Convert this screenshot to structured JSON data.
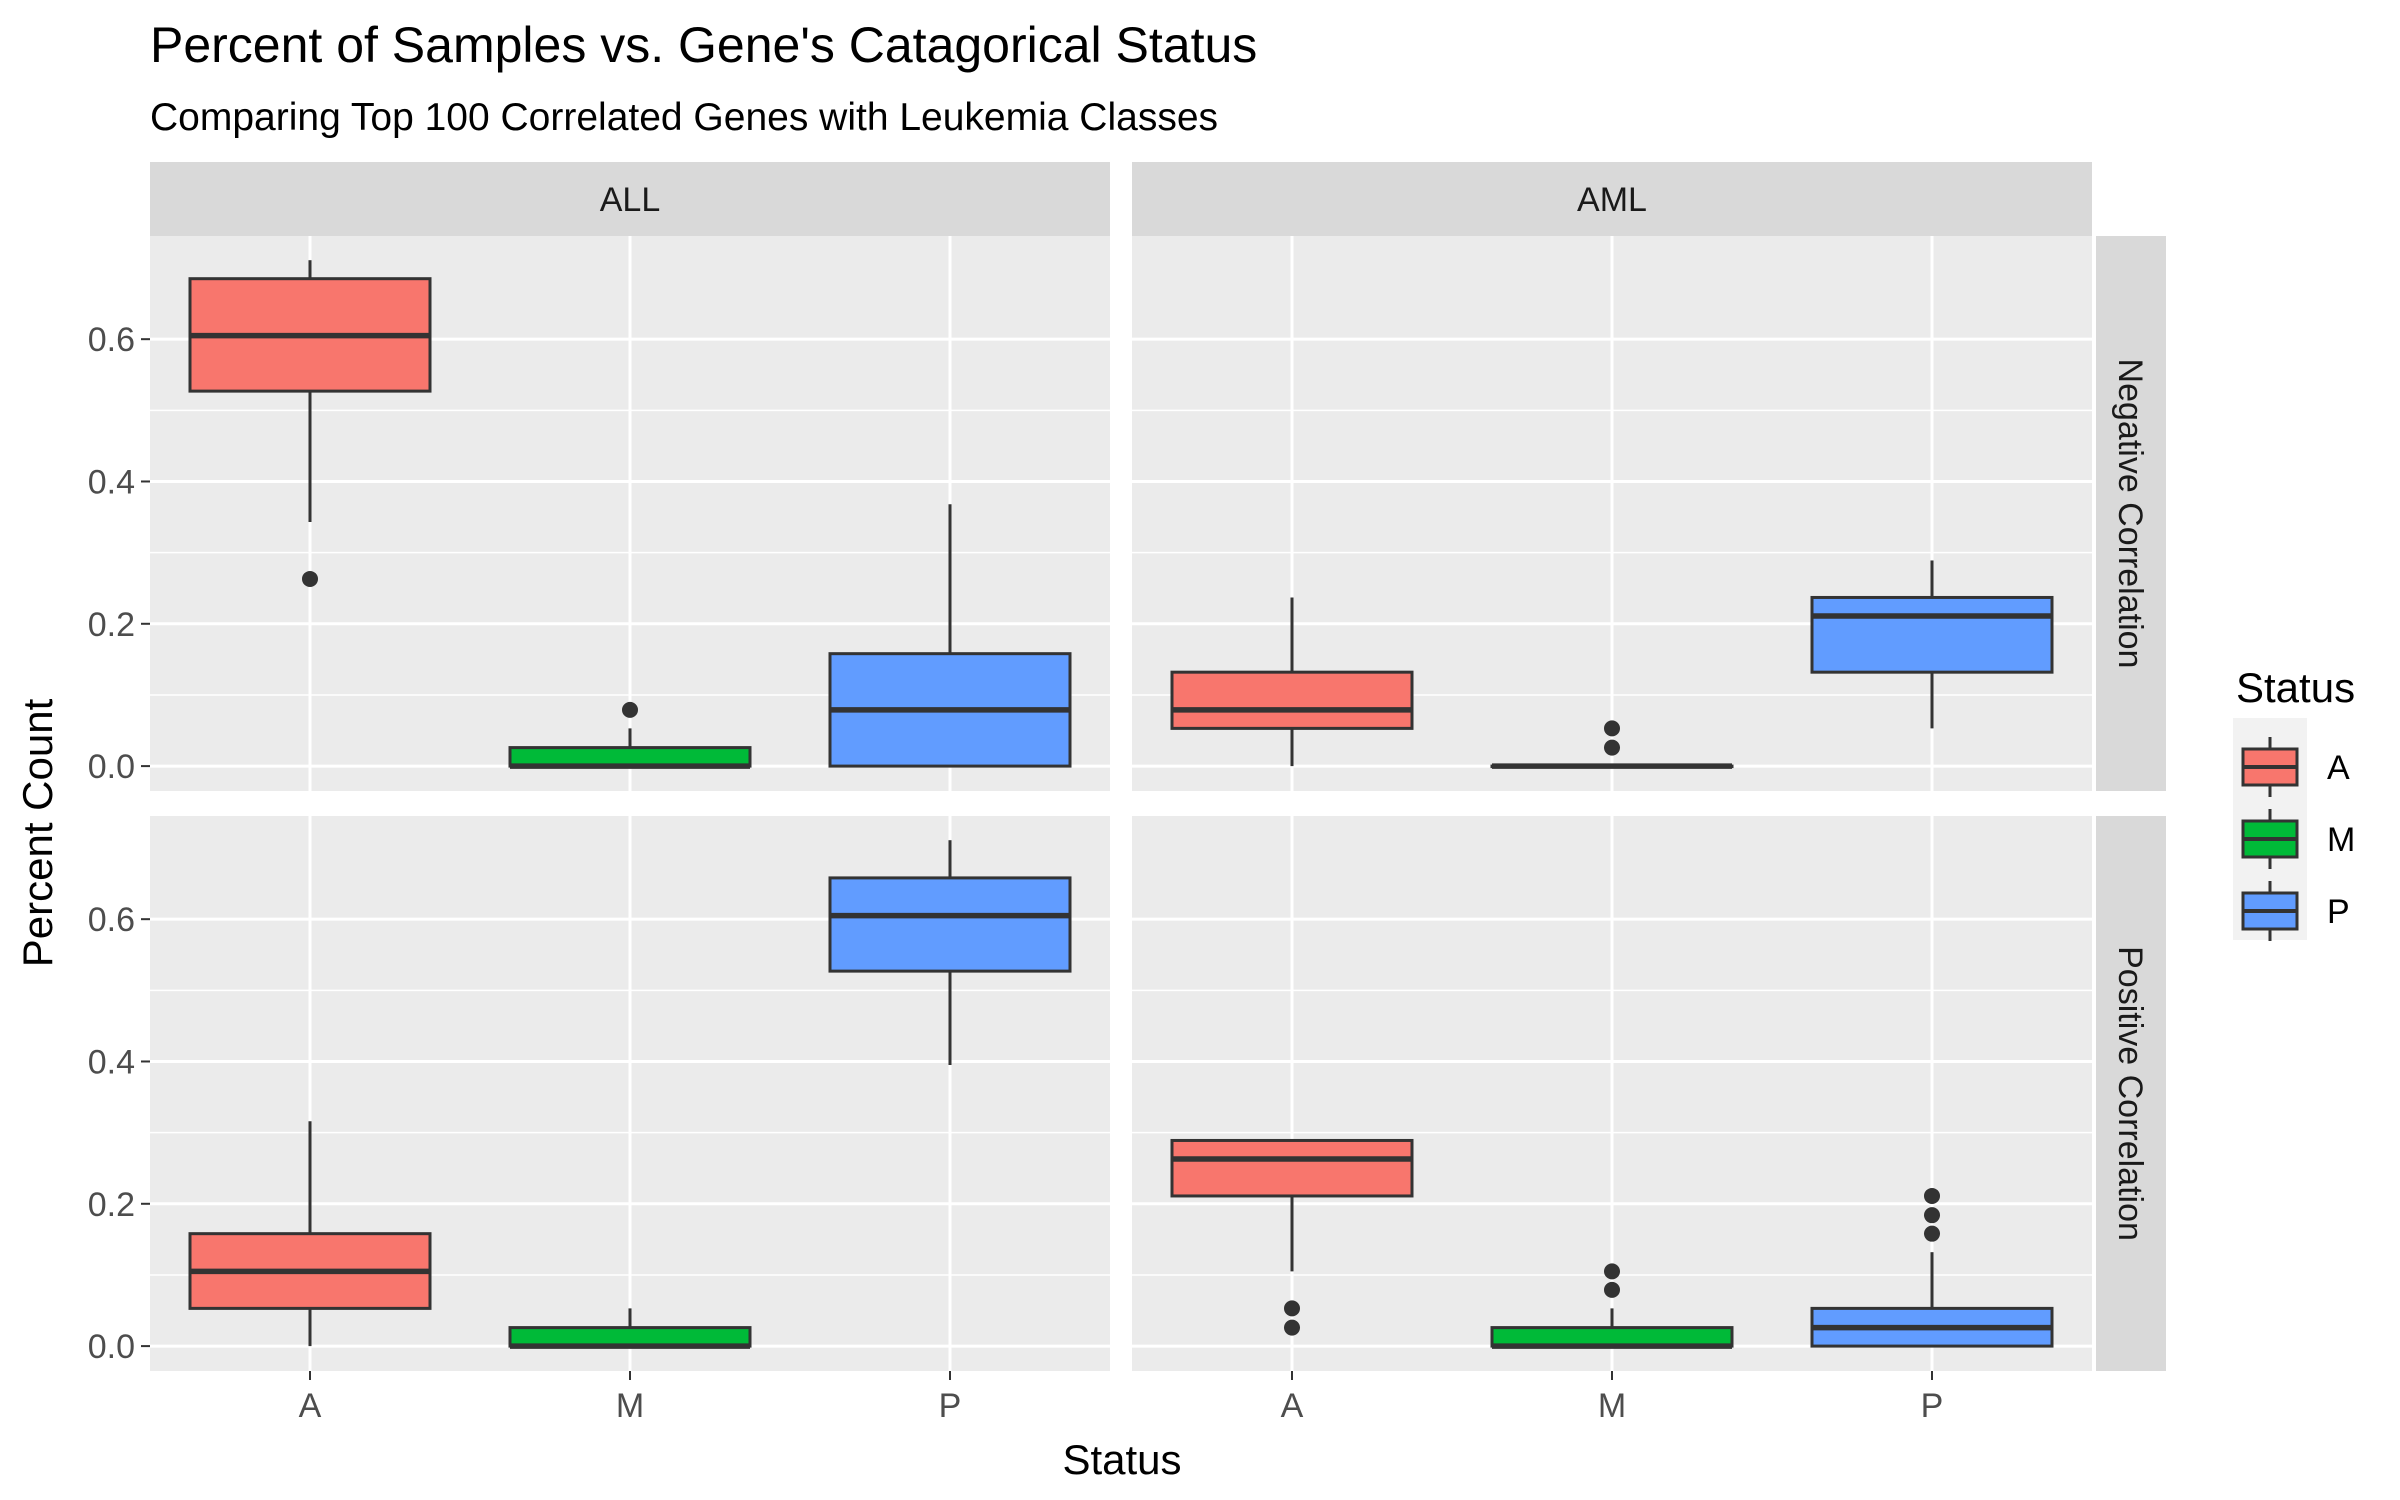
{
  "chart_data": {
    "type": "boxplot",
    "title": "Percent of Samples vs. Gene's Catagorical Status",
    "subtitle": "Comparing Top 100 Correlated Genes with Leukemia Classes",
    "xlabel": "Status",
    "ylabel": "Percent Count",
    "categories": [
      "A",
      "M",
      "P"
    ],
    "column_facets": [
      "ALL",
      "AML"
    ],
    "row_facets": [
      "Negative Correlation",
      "Positive Correlation"
    ],
    "yticks": [
      0.0,
      0.2,
      0.4,
      0.6
    ],
    "ytick_labels": [
      "0.0",
      "0.2",
      "0.4",
      "0.6"
    ],
    "ylim": [
      -0.035,
      0.745
    ],
    "grid": true,
    "legend": {
      "title": "Status",
      "position": "right",
      "entries": [
        {
          "label": "A",
          "color": "#F8766D"
        },
        {
          "label": "M",
          "color": "#00BA38"
        },
        {
          "label": "P",
          "color": "#619CFF"
        }
      ]
    },
    "panels": [
      {
        "row": 0,
        "col": 0,
        "boxes": [
          {
            "category": "A",
            "lower": 0.343,
            "q1": 0.527,
            "median": 0.605,
            "q3": 0.685,
            "upper": 0.711,
            "outliers": [
              0.263
            ]
          },
          {
            "category": "M",
            "lower": 0.0,
            "q1": 0.0,
            "median": 0.0,
            "q3": 0.026,
            "upper": 0.053,
            "outliers": [
              0.079
            ]
          },
          {
            "category": "P",
            "lower": 0.0,
            "q1": 0.0,
            "median": 0.079,
            "q3": 0.158,
            "upper": 0.368,
            "outliers": []
          }
        ]
      },
      {
        "row": 0,
        "col": 1,
        "boxes": [
          {
            "category": "A",
            "lower": 0.0,
            "q1": 0.053,
            "median": 0.079,
            "q3": 0.132,
            "upper": 0.237,
            "outliers": []
          },
          {
            "category": "M",
            "lower": 0.0,
            "q1": 0.0,
            "median": 0.0,
            "q3": 0.0,
            "upper": 0.0,
            "outliers": [
              0.026,
              0.053
            ]
          },
          {
            "category": "P",
            "lower": 0.053,
            "q1": 0.132,
            "median": 0.211,
            "q3": 0.237,
            "upper": 0.289,
            "outliers": []
          }
        ]
      },
      {
        "row": 1,
        "col": 0,
        "boxes": [
          {
            "category": "A",
            "lower": 0.0,
            "q1": 0.053,
            "median": 0.105,
            "q3": 0.158,
            "upper": 0.316,
            "outliers": []
          },
          {
            "category": "M",
            "lower": 0.0,
            "q1": 0.0,
            "median": 0.0,
            "q3": 0.026,
            "upper": 0.053,
            "outliers": []
          },
          {
            "category": "P",
            "lower": 0.395,
            "q1": 0.527,
            "median": 0.605,
            "q3": 0.658,
            "upper": 0.711,
            "outliers": []
          }
        ]
      },
      {
        "row": 1,
        "col": 1,
        "boxes": [
          {
            "category": "A",
            "lower": 0.105,
            "q1": 0.211,
            "median": 0.263,
            "q3": 0.289,
            "upper": 0.289,
            "outliers": [
              0.026,
              0.053
            ]
          },
          {
            "category": "M",
            "lower": 0.0,
            "q1": 0.0,
            "median": 0.0,
            "q3": 0.026,
            "upper": 0.053,
            "outliers": [
              0.079,
              0.105
            ]
          },
          {
            "category": "P",
            "lower": 0.0,
            "q1": 0.0,
            "median": 0.026,
            "q3": 0.053,
            "upper": 0.132,
            "outliers": [
              0.158,
              0.184,
              0.211
            ]
          }
        ]
      }
    ]
  }
}
